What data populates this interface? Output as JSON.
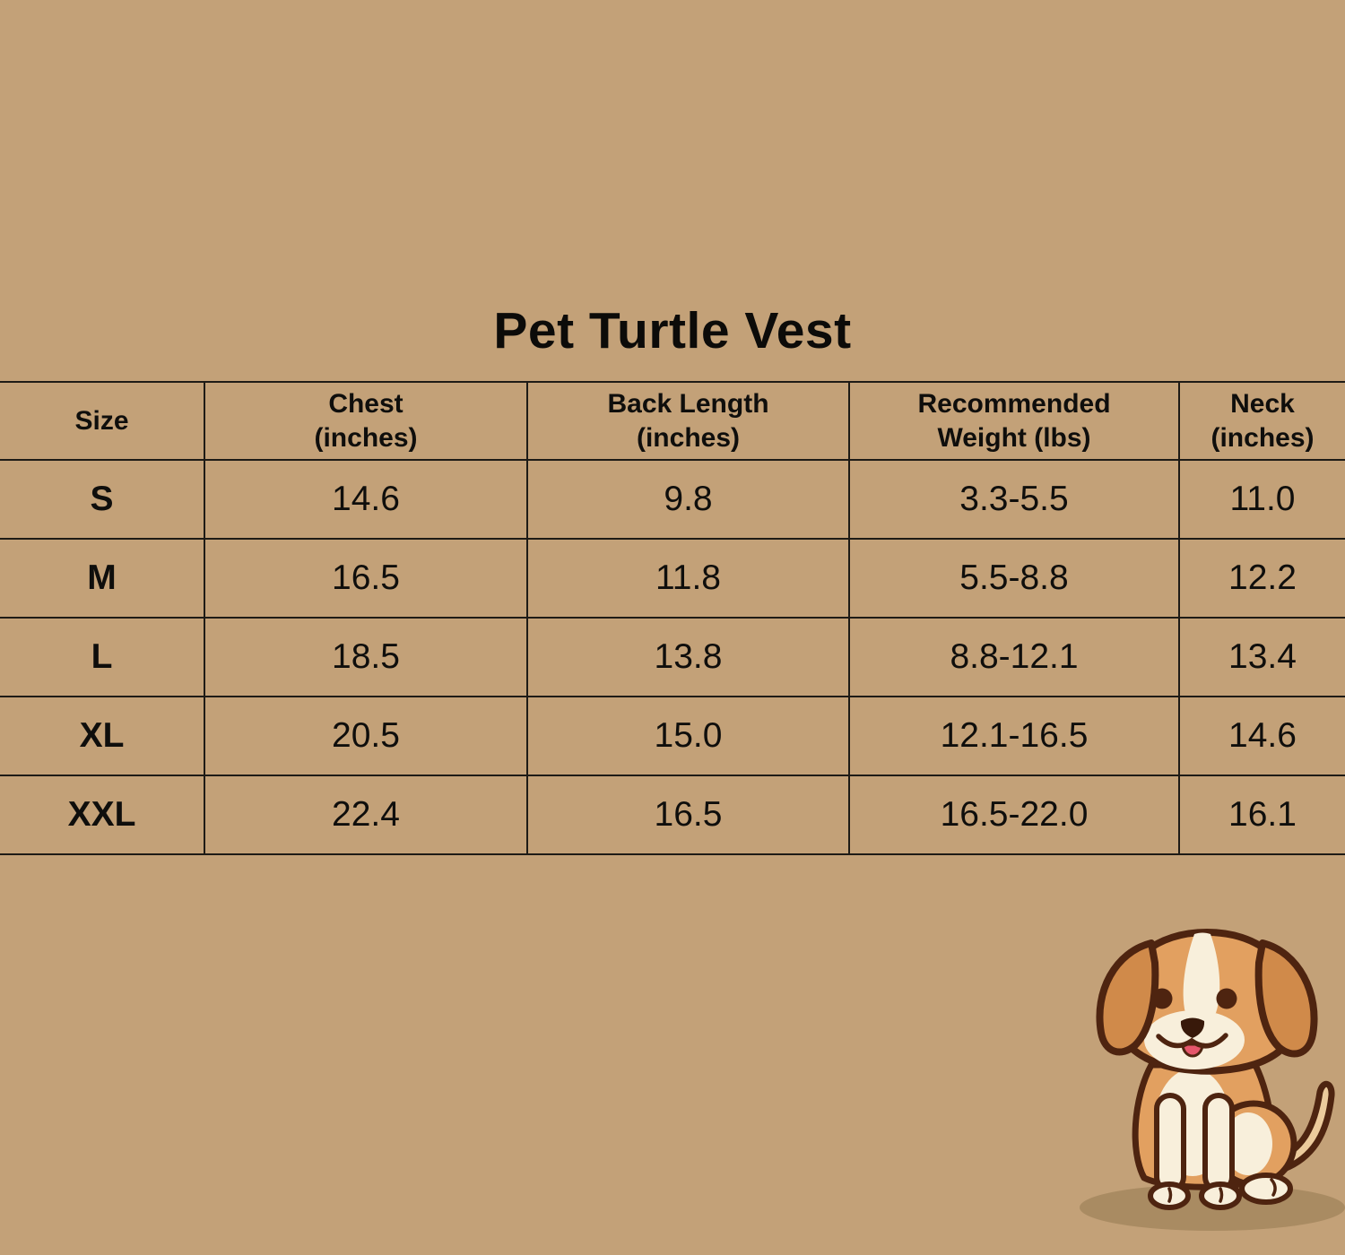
{
  "colors": {
    "background": "#c3a178",
    "table-line": "#1e1b16",
    "text": "#0f0e0c",
    "dog-body": "#e2a060",
    "dog-ear": "#d08a4a",
    "dog-cream": "#f8efdb",
    "dog-tail": "#eccb9c",
    "dog-outline": "#4e2410",
    "dog-nose": "#38190a",
    "dog-tongue": "#e5566b",
    "shadow": "#a4875e"
  },
  "title": "Pet Turtle Vest",
  "table": {
    "columns": [
      "Size",
      "Chest\n(inches)",
      "Back Length\n(inches)",
      "Recommended\nWeight (lbs)",
      "Neck\n(inches)"
    ],
    "rows": [
      [
        "S",
        "14.6",
        "9.8",
        "3.3-5.5",
        "11.0"
      ],
      [
        "M",
        "16.5",
        "11.8",
        "5.5-8.8",
        "12.2"
      ],
      [
        "L",
        "18.5",
        "13.8",
        "8.8-12.1",
        "13.4"
      ],
      [
        "XL",
        "20.5",
        "15.0",
        "12.1-16.5",
        "14.6"
      ],
      [
        "XXL",
        "22.4",
        "16.5",
        "16.5-22.0",
        "16.1"
      ]
    ]
  },
  "illustration": {
    "name": "cartoon-puppy"
  },
  "chart_data": {
    "type": "table",
    "title": "Pet Turtle Vest",
    "columns": [
      "Size",
      "Chest (inches)",
      "Back Length (inches)",
      "Recommended Weight (lbs)",
      "Neck (inches)"
    ],
    "rows": [
      [
        "S",
        "14.6",
        "9.8",
        "3.3-5.5",
        "11.0"
      ],
      [
        "M",
        "16.5",
        "11.8",
        "5.5-8.8",
        "12.2"
      ],
      [
        "L",
        "18.5",
        "13.8",
        "8.8-12.1",
        "13.4"
      ],
      [
        "XL",
        "20.5",
        "15.0",
        "12.1-16.5",
        "14.6"
      ],
      [
        "XXL",
        "22.4",
        "16.5",
        "16.5-22.0",
        "16.1"
      ]
    ]
  }
}
